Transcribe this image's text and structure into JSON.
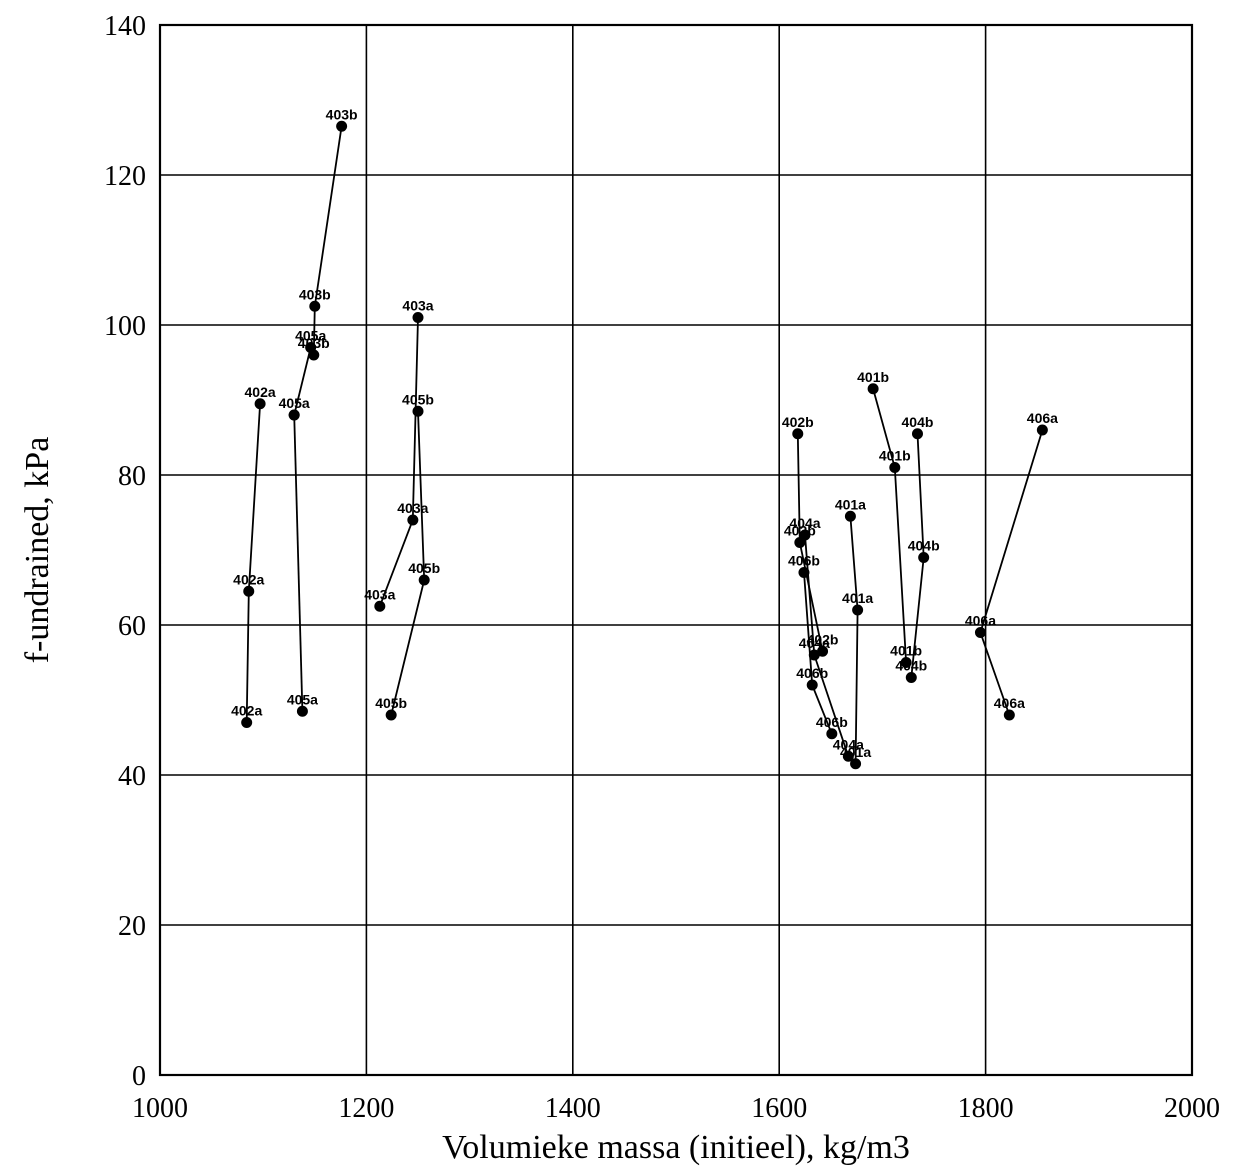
{
  "chart_data": {
    "type": "scatter",
    "xlabel": "Volumieke massa (initieel), kg/m3",
    "ylabel": "f-undrained, kPa",
    "xlim": [
      1000,
      2000
    ],
    "ylim": [
      0,
      140
    ],
    "x_ticks": [
      "1000",
      "1200",
      "1400",
      "1600",
      "1800",
      "2000"
    ],
    "y_ticks": [
      "0",
      "20",
      "40",
      "60",
      "80",
      "100",
      "120",
      "140"
    ],
    "grid": true,
    "series": [
      {
        "name": "402a",
        "points": [
          [
            1097,
            89.5
          ],
          [
            1086,
            64.5
          ],
          [
            1084,
            47
          ]
        ],
        "labels": [
          "402a",
          "402a",
          "402a"
        ]
      },
      {
        "name": "405a",
        "points": [
          [
            1130,
            88
          ],
          [
            1138,
            48.5
          ]
        ],
        "labels": [
          "405a",
          "405a"
        ]
      },
      {
        "name": "403b",
        "points": [
          [
            1176,
            126.5
          ],
          [
            1150,
            102.5
          ],
          [
            1149,
            96
          ]
        ],
        "labels": [
          "403b",
          "403b",
          "403b"
        ]
      },
      {
        "name": "405a (2)",
        "points": [
          [
            1146,
            97
          ],
          [
            1130,
            88
          ]
        ],
        "labels": [
          "405a",
          ""
        ]
      },
      {
        "name": "403a",
        "points": [
          [
            1250,
            101
          ],
          [
            1245,
            74
          ],
          [
            1213,
            62.5
          ]
        ],
        "labels": [
          "403a",
          "403a",
          "403a"
        ]
      },
      {
        "name": "405b",
        "points": [
          [
            1250,
            88.5
          ],
          [
            1256,
            66
          ],
          [
            1224,
            48
          ]
        ],
        "labels": [
          "405b",
          "405b",
          "405b"
        ]
      },
      {
        "name": "402b",
        "points": [
          [
            1618,
            85.5
          ],
          [
            1620,
            71
          ],
          [
            1642,
            56.5
          ]
        ],
        "labels": [
          "402b",
          "402b",
          "402b"
        ]
      },
      {
        "name": "404a",
        "points": [
          [
            1625,
            72
          ],
          [
            1634,
            56
          ],
          [
            1667,
            42.5
          ]
        ],
        "labels": [
          "404a",
          "404a",
          "404a"
        ]
      },
      {
        "name": "406b",
        "points": [
          [
            1624,
            67
          ],
          [
            1632,
            52
          ],
          [
            1651,
            45.5
          ]
        ],
        "labels": [
          "406b",
          "406b",
          "406b"
        ]
      },
      {
        "name": "401a",
        "points": [
          [
            1669,
            74.5
          ],
          [
            1676,
            62
          ],
          [
            1674,
            41.5
          ]
        ],
        "labels": [
          "401a",
          "401a",
          "401a"
        ]
      },
      {
        "name": "401b",
        "points": [
          [
            1691,
            91.5
          ],
          [
            1712,
            81
          ],
          [
            1723,
            55
          ]
        ],
        "labels": [
          "401b",
          "401b",
          "401b"
        ]
      },
      {
        "name": "404b",
        "points": [
          [
            1734,
            85.5
          ],
          [
            1740,
            69
          ],
          [
            1728,
            53
          ]
        ],
        "labels": [
          "404b",
          "404b",
          "404b"
        ]
      },
      {
        "name": "406a",
        "points": [
          [
            1855,
            86
          ],
          [
            1795,
            59
          ],
          [
            1823,
            48
          ]
        ],
        "labels": [
          "406a",
          "406a",
          "406a"
        ]
      }
    ]
  }
}
